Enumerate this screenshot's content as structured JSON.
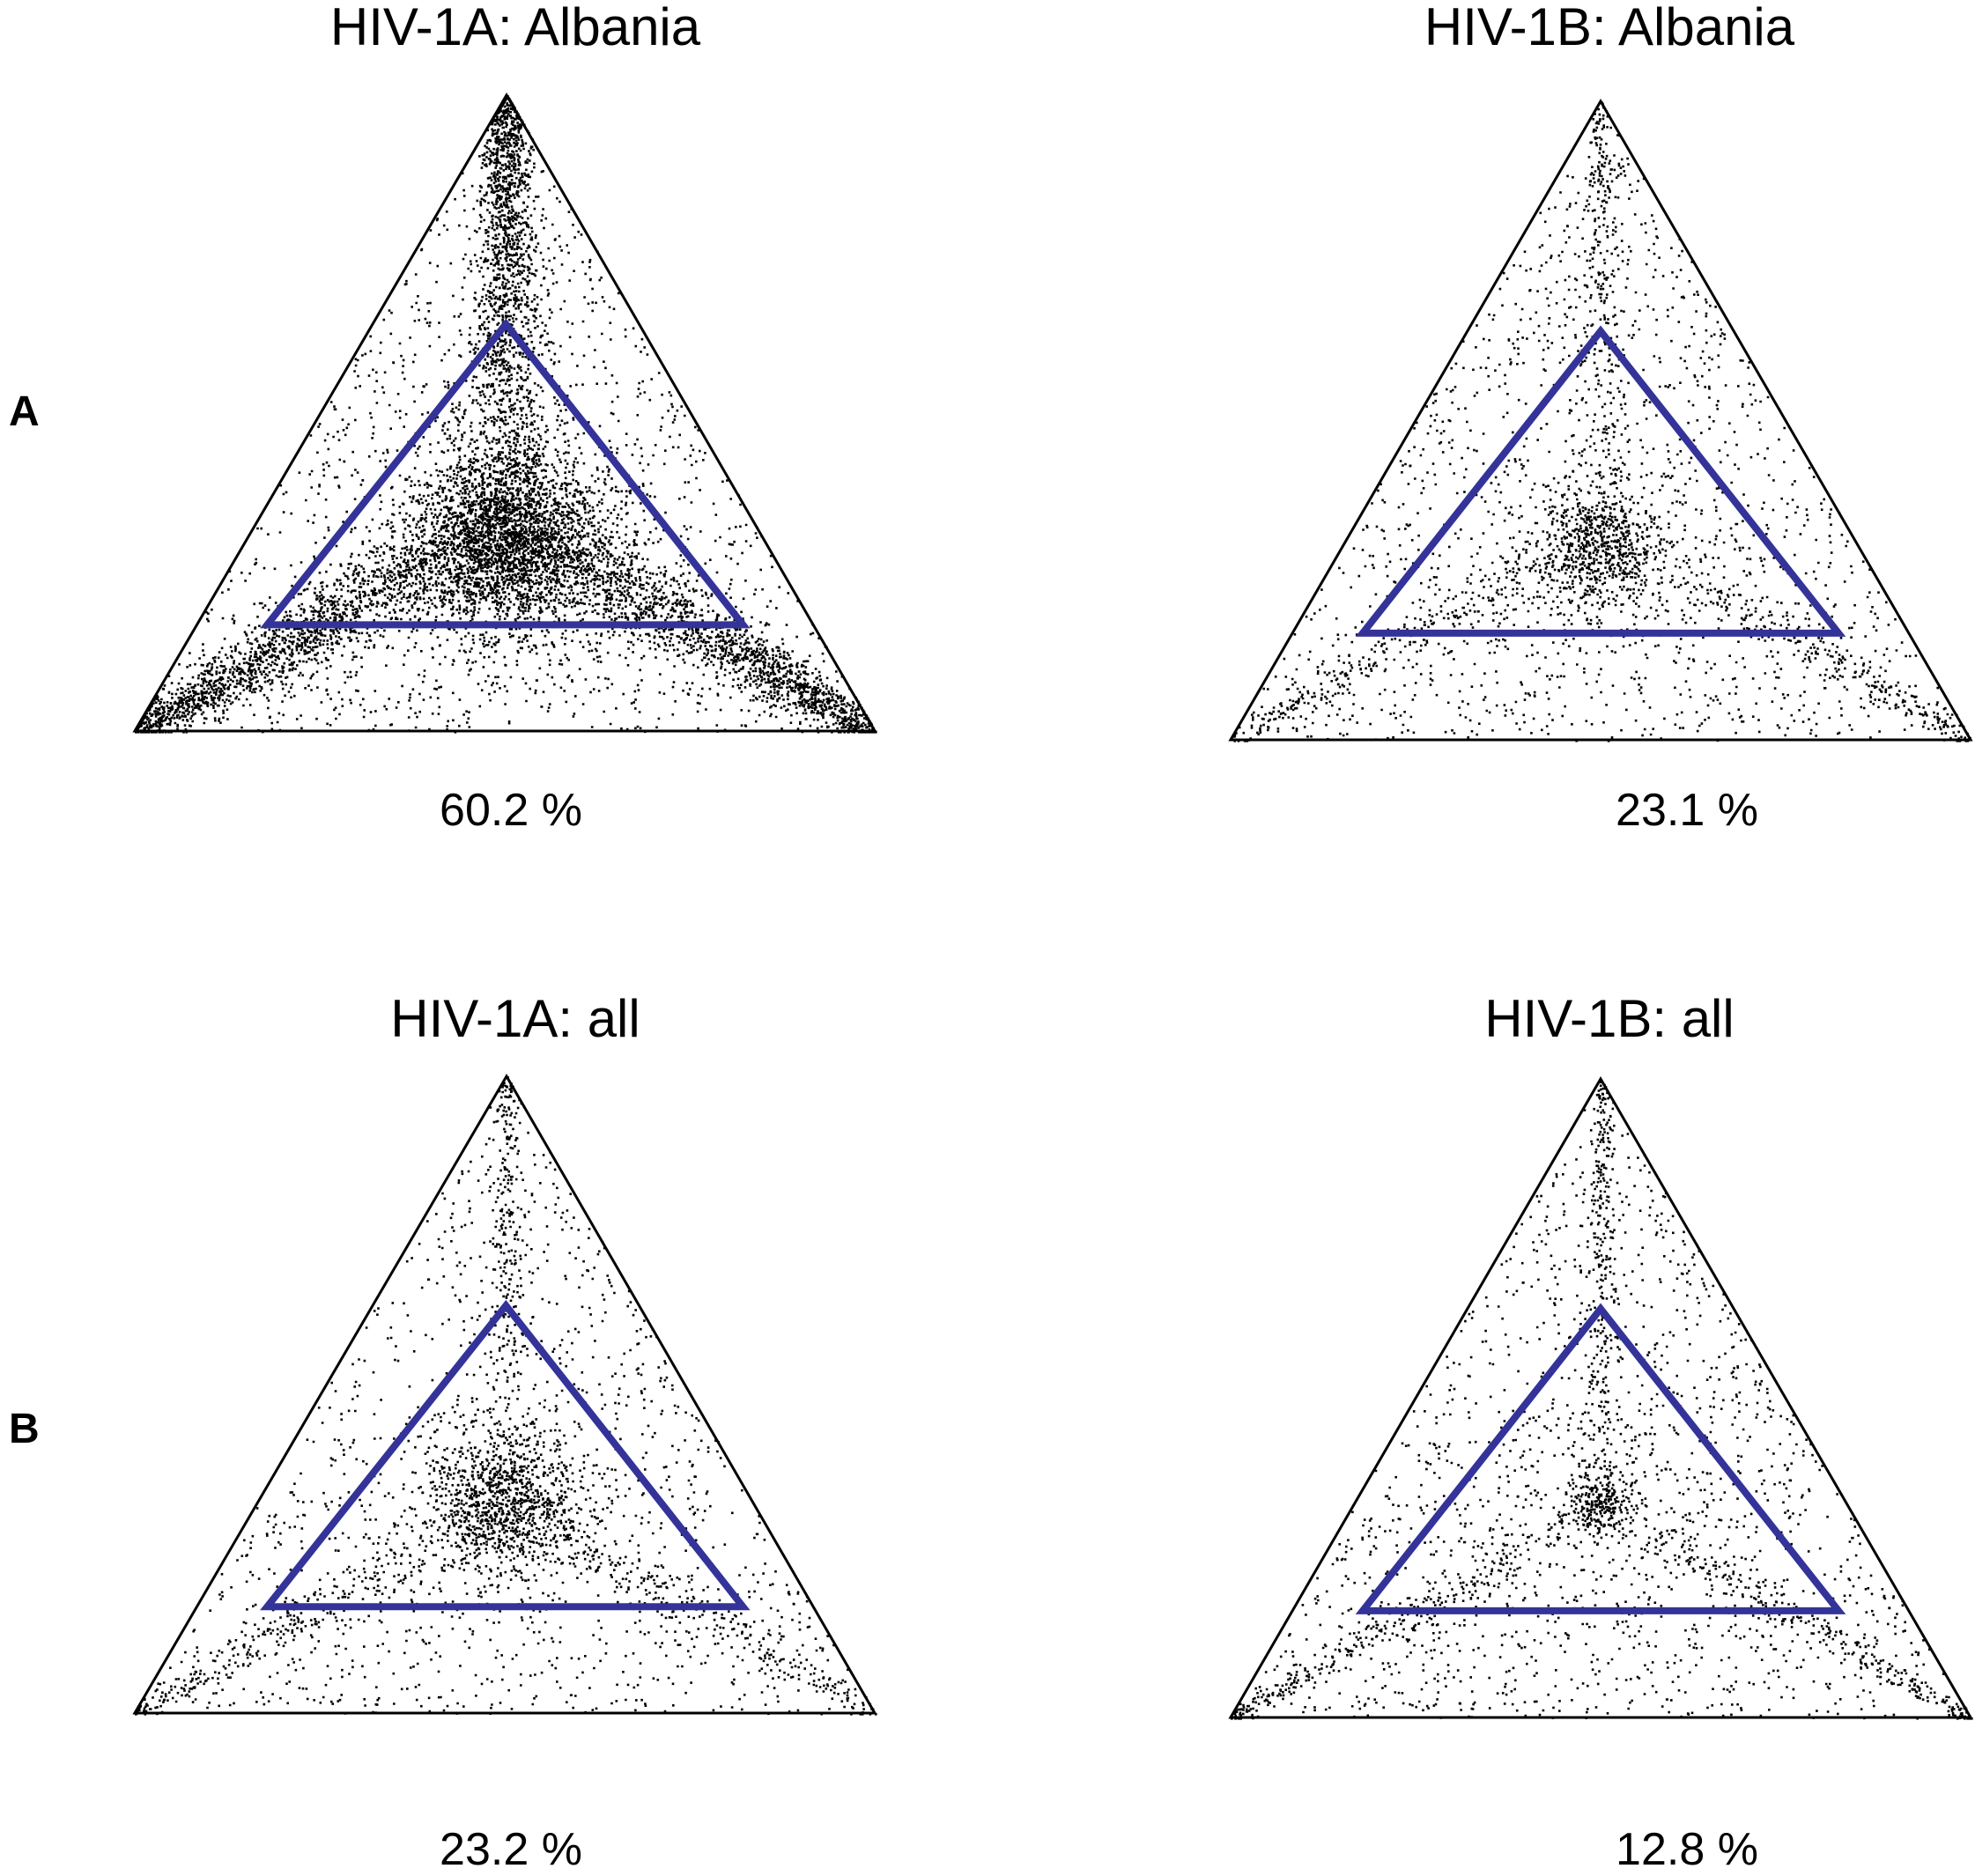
{
  "figure": {
    "row_labels": [
      "A",
      "B"
    ]
  },
  "colors": {
    "outer_triangle": "#000000",
    "inner_triangle": "#333399",
    "points": "#000000"
  },
  "chart_data": [
    {
      "type": "scatter",
      "subtype": "ternary likelihood-mapping",
      "title": "HIV-1A: Albania",
      "annotation": "60.2 %",
      "inner_fraction_percent": 60.2,
      "row": "A",
      "density": "very high, strong corner-to-center arms"
    },
    {
      "type": "scatter",
      "subtype": "ternary likelihood-mapping",
      "title": "HIV-1B: Albania",
      "annotation": "23.1 %",
      "inner_fraction_percent": 23.1,
      "row": "A",
      "density": "moderate, sparse arms with central cluster"
    },
    {
      "type": "scatter",
      "subtype": "ternary likelihood-mapping",
      "title": "HIV-1A: all",
      "annotation": "23.2 %",
      "inner_fraction_percent": 23.2,
      "row": "B",
      "density": "moderate, central cluster"
    },
    {
      "type": "scatter",
      "subtype": "ternary likelihood-mapping",
      "title": "HIV-1B: all",
      "annotation": "12.8 %",
      "inner_fraction_percent": 12.8,
      "row": "B",
      "density": "moderate, thin arms meeting at center"
    }
  ]
}
